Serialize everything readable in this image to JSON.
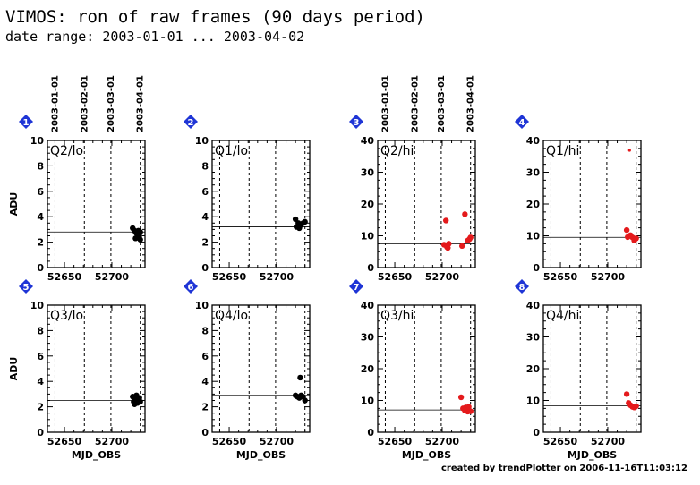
{
  "header": {
    "title": "VIMOS: ron of raw frames (90 days period)",
    "subtitle": "date range: 2003-01-01 ... 2003-04-02"
  },
  "footer": "created by trendPlotter on 2006-11-16T11:03:12",
  "top_date_labels": [
    "2003-01-01",
    "2003-02-01",
    "2003-03-01",
    "2003-04-01"
  ],
  "colors": {
    "lo_points": "#000000",
    "hi_points": "#e41a1c",
    "badge": "#1f35d6",
    "axes": "#000000"
  },
  "chart_data": [
    {
      "type": "scatter",
      "panel_number": "1",
      "label": "Q2/lo",
      "ylabel": "ADU",
      "xlabel": "",
      "xticks": [
        "52650",
        "52700"
      ],
      "yticks": [
        "0",
        "2",
        "4",
        "6",
        "8",
        "10"
      ],
      "xlim": [
        52632,
        52735
      ],
      "ylim": [
        0,
        10
      ],
      "reference_line": 2.8,
      "vlines": [
        52640,
        52671,
        52699,
        52730
      ],
      "grid": "dashed vertical at month starts",
      "points": [
        [
          52722,
          3.1
        ],
        [
          52724,
          2.9
        ],
        [
          52725,
          2.3
        ],
        [
          52726,
          2.7
        ],
        [
          52727,
          2.6
        ],
        [
          52728,
          2.9
        ],
        [
          52729,
          2.5
        ],
        [
          52730,
          2.2
        ],
        [
          52730,
          2.8
        ]
      ]
    },
    {
      "type": "scatter",
      "panel_number": "2",
      "label": "Q1/lo",
      "ylabel": "",
      "xlabel": "",
      "xticks": [
        "52650",
        "52700"
      ],
      "yticks": [
        "0",
        "2",
        "4",
        "6",
        "8",
        "10"
      ],
      "xlim": [
        52632,
        52735
      ],
      "ylim": [
        0,
        10
      ],
      "reference_line": 3.2,
      "vlines": [
        52640,
        52671,
        52699,
        52730
      ],
      "grid": "dashed vertical at month starts",
      "points": [
        [
          52720,
          3.8
        ],
        [
          52721,
          3.2
        ],
        [
          52723,
          3.5
        ],
        [
          52724,
          3.1
        ],
        [
          52725,
          3.3
        ],
        [
          52726,
          3.4
        ],
        [
          52728,
          3.5
        ],
        [
          52730,
          3.6
        ]
      ]
    },
    {
      "type": "scatter",
      "panel_number": "3",
      "label": "Q2/hi",
      "ylabel": "",
      "xlabel": "",
      "xticks": [
        "52650",
        "52700"
      ],
      "yticks": [
        "0",
        "10",
        "20",
        "30",
        "40"
      ],
      "xlim": [
        52632,
        52735
      ],
      "ylim": [
        0,
        40
      ],
      "reference_line": 7.5,
      "vlines": [
        52640,
        52671,
        52699,
        52730
      ],
      "grid": "dashed vertical at month starts",
      "points": [
        [
          52702,
          7.2
        ],
        [
          52704,
          14.8
        ],
        [
          52705,
          6.5
        ],
        [
          52706,
          6.2
        ],
        [
          52707,
          7.5
        ],
        [
          52721,
          6.8
        ],
        [
          52724,
          16.8
        ],
        [
          52727,
          8.5
        ],
        [
          52729,
          9.0
        ],
        [
          52730,
          9.5
        ]
      ]
    },
    {
      "type": "scatter",
      "panel_number": "4",
      "label": "Q1/hi",
      "ylabel": "",
      "xlabel": "",
      "xticks": [
        "52650",
        "52700"
      ],
      "yticks": [
        "0",
        "10",
        "20",
        "30",
        "40"
      ],
      "xlim": [
        52632,
        52735
      ],
      "ylim": [
        0,
        40
      ],
      "reference_line": 9.5,
      "vlines": [
        52640,
        52671,
        52699,
        52730
      ],
      "grid": "dashed vertical at month starts",
      "points": [
        [
          52720,
          11.8
        ],
        [
          52721,
          9.6
        ],
        [
          52723,
          36.9
        ],
        [
          52724,
          10.2
        ],
        [
          52726,
          9.5
        ],
        [
          52728,
          8.5
        ],
        [
          52730,
          9.2
        ]
      ]
    },
    {
      "type": "scatter",
      "panel_number": "5",
      "label": "Q3/lo",
      "ylabel": "ADU",
      "xlabel": "MJD_OBS",
      "xticks": [
        "52650",
        "52700"
      ],
      "yticks": [
        "0",
        "2",
        "4",
        "6",
        "8",
        "10"
      ],
      "xlim": [
        52632,
        52735
      ],
      "ylim": [
        0,
        10
      ],
      "reference_line": 2.5,
      "vlines": [
        52640,
        52671,
        52699,
        52730
      ],
      "grid": "dashed vertical at month starts",
      "points": [
        [
          52722,
          2.8
        ],
        [
          52723,
          2.4
        ],
        [
          52724,
          2.2
        ],
        [
          52725,
          2.6
        ],
        [
          52726,
          2.9
        ],
        [
          52727,
          2.3
        ],
        [
          52728,
          2.5
        ],
        [
          52729,
          2.7
        ],
        [
          52730,
          2.4
        ]
      ]
    },
    {
      "type": "scatter",
      "panel_number": "6",
      "label": "Q4/lo",
      "ylabel": "",
      "xlabel": "MJD_OBS",
      "xticks": [
        "52650",
        "52700"
      ],
      "yticks": [
        "0",
        "2",
        "4",
        "6",
        "8",
        "10"
      ],
      "xlim": [
        52632,
        52735
      ],
      "ylim": [
        0,
        10
      ],
      "reference_line": 2.9,
      "vlines": [
        52640,
        52671,
        52699,
        52730
      ],
      "grid": "dashed vertical at month starts",
      "points": [
        [
          52720,
          2.9
        ],
        [
          52722,
          2.8
        ],
        [
          52724,
          2.7
        ],
        [
          52725,
          4.3
        ],
        [
          52726,
          2.9
        ],
        [
          52728,
          2.8
        ],
        [
          52730,
          2.5
        ]
      ]
    },
    {
      "type": "scatter",
      "panel_number": "7",
      "label": "Q3/hi",
      "ylabel": "",
      "xlabel": "MJD_OBS",
      "xticks": [
        "52650",
        "52700"
      ],
      "yticks": [
        "0",
        "10",
        "20",
        "30",
        "40"
      ],
      "xlim": [
        52632,
        52735
      ],
      "ylim": [
        0,
        40
      ],
      "reference_line": 7.0,
      "vlines": [
        52640,
        52671,
        52699,
        52730
      ],
      "grid": "dashed vertical at month starts",
      "points": [
        [
          52720,
          11.0
        ],
        [
          52722,
          7.5
        ],
        [
          52724,
          6.8
        ],
        [
          52725,
          7.8
        ],
        [
          52727,
          6.5
        ],
        [
          52728,
          8.0
        ],
        [
          52730,
          6.6
        ]
      ]
    },
    {
      "type": "scatter",
      "panel_number": "8",
      "label": "Q4/hi",
      "ylabel": "",
      "xlabel": "MJD_OBS",
      "xticks": [
        "52650",
        "52700"
      ],
      "yticks": [
        "0",
        "10",
        "20",
        "30",
        "40"
      ],
      "xlim": [
        52632,
        52735
      ],
      "ylim": [
        0,
        40
      ],
      "reference_line": 8.3,
      "vlines": [
        52640,
        52671,
        52699,
        52730
      ],
      "grid": "dashed vertical at month starts",
      "points": [
        [
          52720,
          12.0
        ],
        [
          52722,
          9.2
        ],
        [
          52724,
          8.5
        ],
        [
          52726,
          8.0
        ],
        [
          52728,
          7.8
        ],
        [
          52730,
          8.2
        ]
      ]
    }
  ]
}
